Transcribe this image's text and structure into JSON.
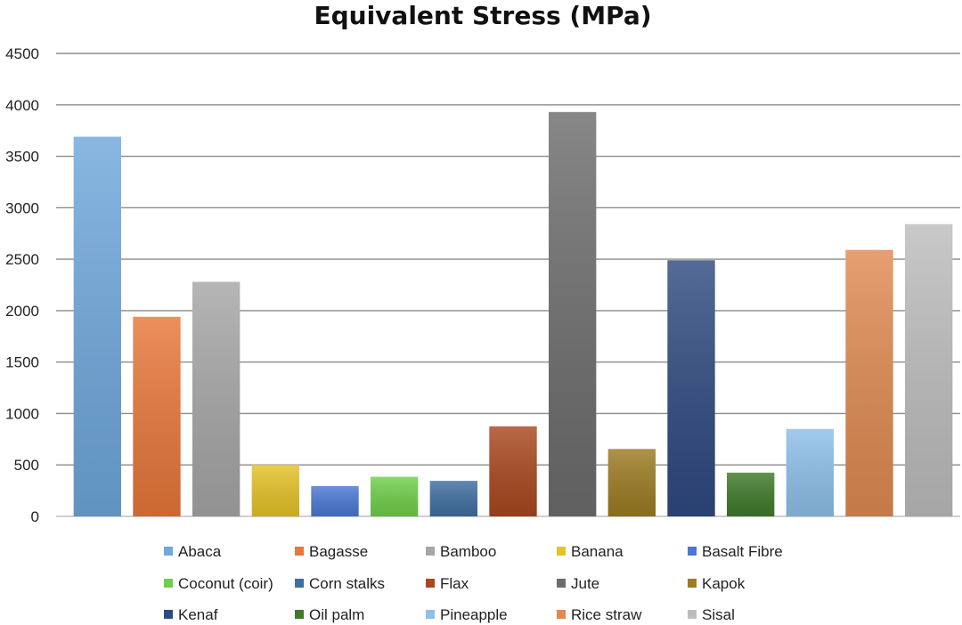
{
  "chart_data": {
    "type": "bar",
    "title": "Equivalent Stress (MPa)",
    "xlabel": "",
    "ylabel": "",
    "ylim": [
      0,
      4500
    ],
    "yticks": [
      0,
      500,
      1000,
      1500,
      2000,
      2500,
      3000,
      3500,
      4000,
      4500
    ],
    "grid": true,
    "legend_position": "bottom",
    "categories": [
      "Abaca",
      "Bagasse",
      "Bamboo",
      "Banana",
      "Basalt Fibre",
      "Coconut (coir)",
      "Corn stalks",
      "Flax",
      "Jute",
      "Kapok",
      "Kenaf",
      "Oil palm",
      "Pineapple",
      "Rice straw",
      "Sisal"
    ],
    "values": [
      3690,
      1940,
      2280,
      500,
      295,
      385,
      345,
      875,
      3930,
      655,
      2490,
      425,
      850,
      2590,
      2840
    ],
    "colors": [
      "#6fa8dc",
      "#e8773a",
      "#a6a6a6",
      "#e6c228",
      "#4a78d4",
      "#6fcf4a",
      "#3f6fa0",
      "#a9481e",
      "#6d6d6d",
      "#9c7b22",
      "#2f4a80",
      "#3f7a2a",
      "#8ec0ea",
      "#e08a52",
      "#bdbdbd"
    ]
  }
}
